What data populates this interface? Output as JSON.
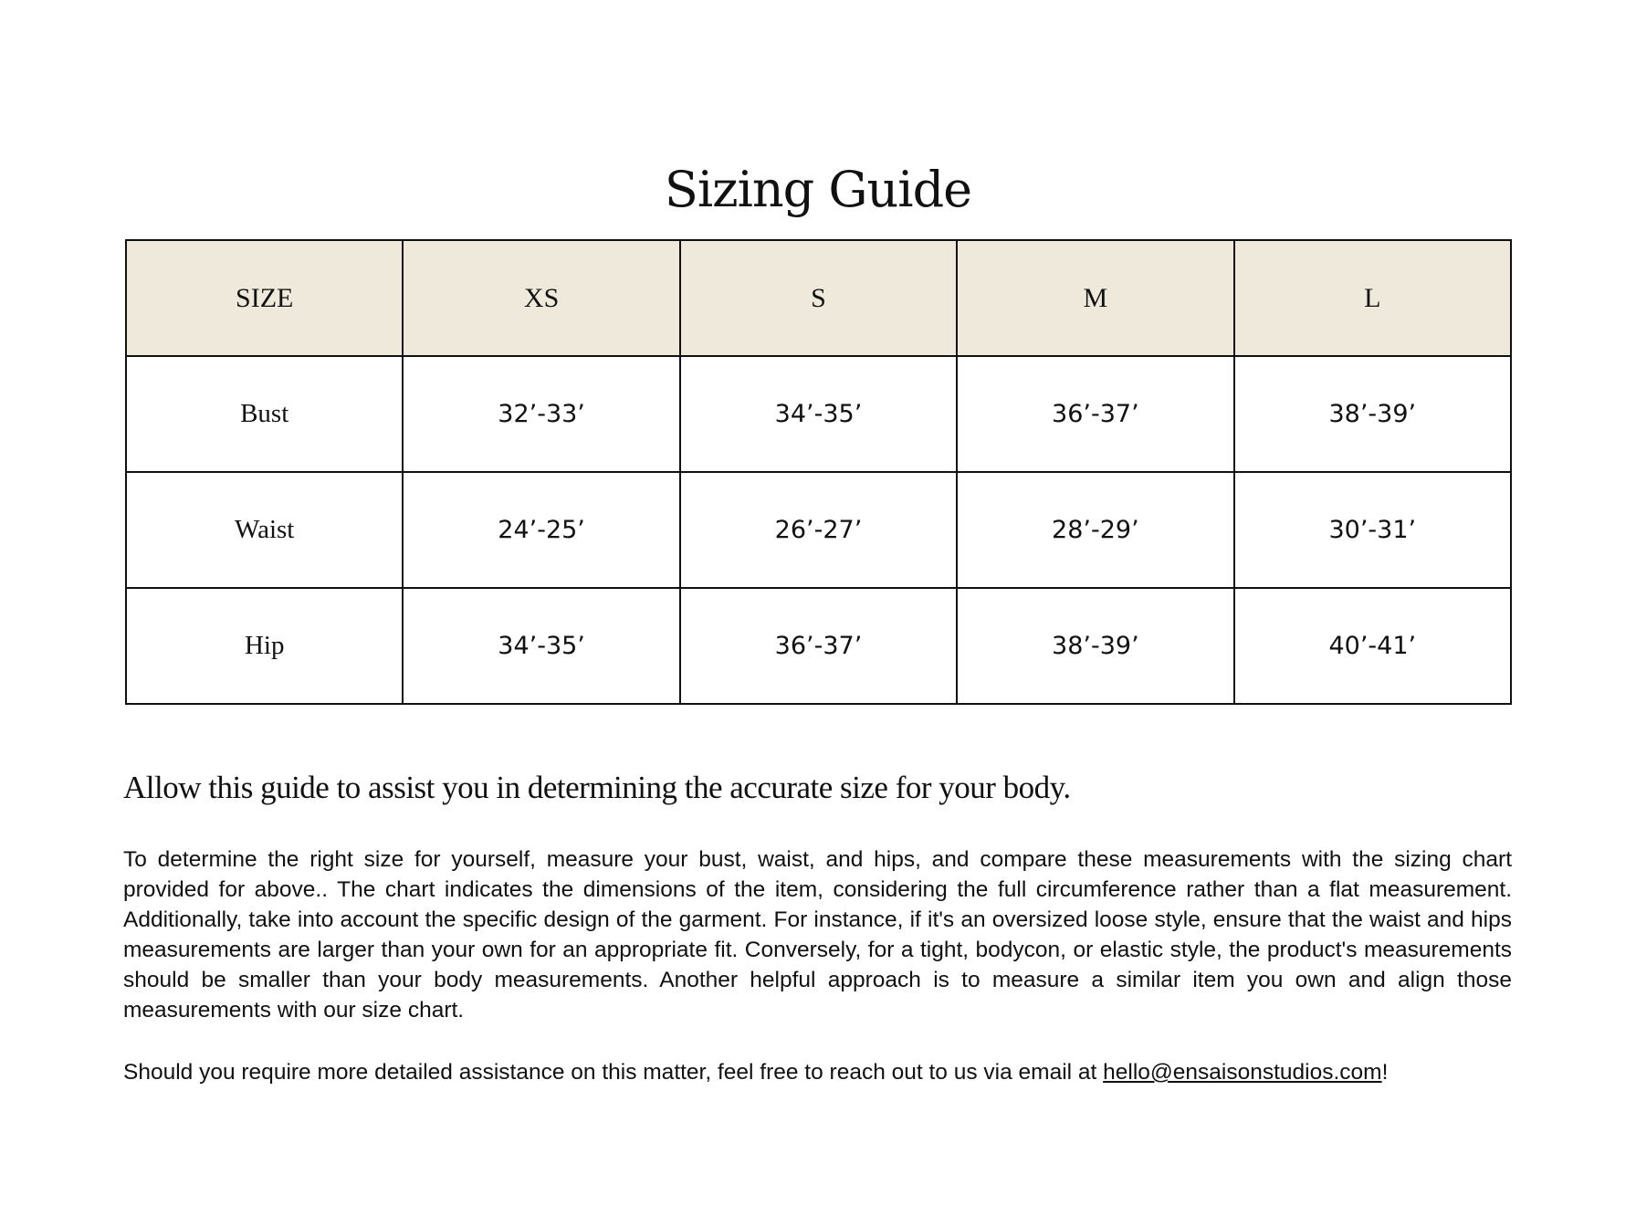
{
  "title": "Sizing Guide",
  "table": {
    "headers": [
      "SIZE",
      "XS",
      "S",
      "M",
      "L"
    ],
    "rows": [
      {
        "label": "Bust",
        "values": [
          "32’-33’",
          "34’-35’",
          "36’-37’",
          "38’-39’"
        ]
      },
      {
        "label": "Waist",
        "values": [
          "24’-25’",
          "26’-27’",
          "28’-29’",
          "30’-31’"
        ]
      },
      {
        "label": "Hip",
        "values": [
          "34’-35’",
          "36’-37’",
          "38’-39’",
          "40’-41’"
        ]
      }
    ],
    "header_bg": "#EEE9DA"
  },
  "subheading": "Allow this guide to assist you in determining the accurate size for your body.",
  "paragraph1": "To determine the right size for yourself, measure your bust, waist, and hips, and compare these measurements with the sizing chart provided for above.. The chart indicates the dimensions of the item, considering the full circumference rather than a flat measurement. Additionally, take into account the specific design of the garment. For instance, if it's an oversized loose style, ensure that the waist and hips measurements are larger than your own for an appropriate fit. Conversely, for a tight, bodycon, or elastic style, the product's measurements should be smaller than your body measurements. Another helpful approach is to measure a similar item you own and align those measurements with our size chart.",
  "paragraph2": {
    "text": "Should you require more detailed assistance on this matter, feel free to reach out to us via email at ",
    "email": "hello@ensaisonstudios.com",
    "suffix": "!"
  }
}
